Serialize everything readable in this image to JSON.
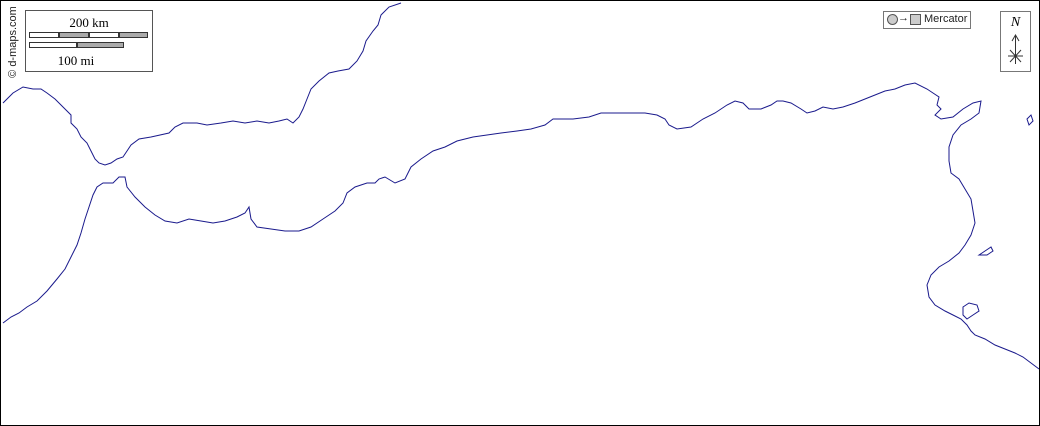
{
  "credit": "© d-maps.com",
  "scale": {
    "km_label": "200 km",
    "mi_label": "100 mi"
  },
  "projection": {
    "label": "Mercator"
  },
  "north": {
    "label": "N"
  },
  "colors": {
    "coastline": "#1a1a8c",
    "frame": "#000000"
  },
  "icons": {
    "projection": "circle-to-square-icon",
    "north": "north-arrow-icon"
  }
}
